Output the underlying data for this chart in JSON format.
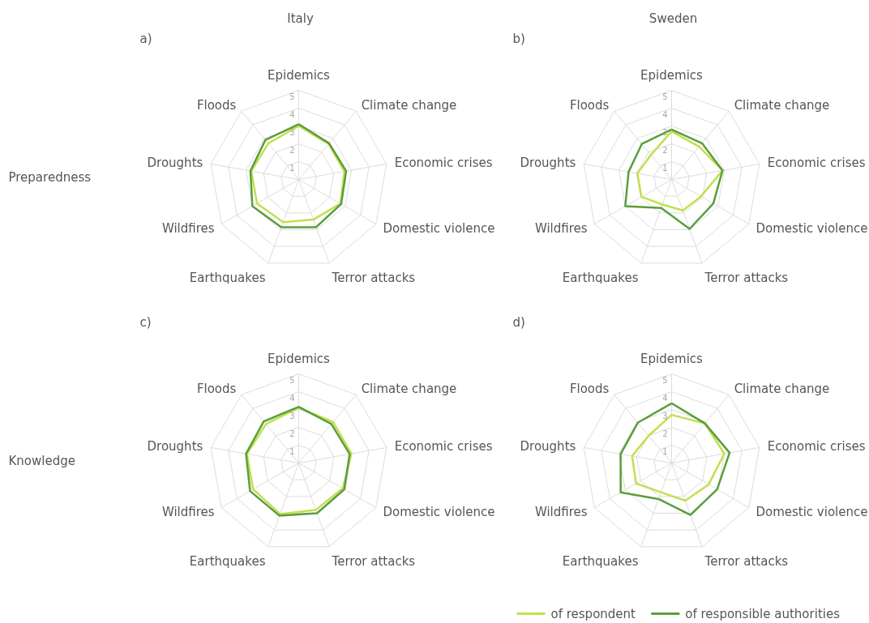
{
  "chart_data": [
    {
      "type": "radar",
      "title": "a)",
      "subtitle": "Italy",
      "ylabel": "Preparedness",
      "categories": [
        "Epidemics",
        "Climate change",
        "Economic crises",
        "Domestic violence",
        "Terror attacks",
        "Earthquakes",
        "Wildfires",
        "Droughts",
        "Floods"
      ],
      "ylim": [
        0,
        5
      ],
      "yticks": [
        1,
        2,
        3,
        4,
        5
      ],
      "grid": true,
      "legend": false,
      "series": [
        {
          "color": "#c3df4f",
          "values": [
            3.0,
            2.6,
            2.6,
            2.7,
            2.4,
            2.55,
            2.7,
            2.7,
            2.65
          ]
        },
        {
          "color": "#5a9e3c",
          "values": [
            3.1,
            2.65,
            2.7,
            2.75,
            2.85,
            2.85,
            3.0,
            2.75,
            2.9
          ]
        }
      ]
    },
    {
      "type": "radar",
      "title": "b)",
      "subtitle": "Sweden",
      "categories": [
        "Epidemics",
        "Climate change",
        "Economic crises",
        "Domestic violence",
        "Terror attacks",
        "Earthquakes",
        "Wildfires",
        "Droughts",
        "Floods"
      ],
      "ylim": [
        0,
        5
      ],
      "yticks": [
        1,
        2,
        3,
        4,
        5
      ],
      "grid": true,
      "legend": false,
      "series": [
        {
          "color": "#c3df4f",
          "values": [
            2.7,
            2.4,
            2.9,
            1.9,
            1.85,
            1.5,
            1.95,
            1.95,
            1.8
          ]
        },
        {
          "color": "#5a9e3c",
          "values": [
            2.8,
            2.65,
            2.9,
            2.7,
            2.95,
            1.7,
            3.0,
            2.45,
            2.6
          ]
        }
      ]
    },
    {
      "type": "radar",
      "title": "c)",
      "ylabel": "Knowledge",
      "categories": [
        "Epidemics",
        "Climate change",
        "Economic crises",
        "Domestic violence",
        "Terror attacks",
        "Earthquakes",
        "Wildfires",
        "Droughts",
        "Floods"
      ],
      "ylim": [
        0,
        5
      ],
      "yticks": [
        1,
        2,
        3,
        4,
        5
      ],
      "grid": true,
      "legend": false,
      "series": [
        {
          "color": "#c3df4f",
          "values": [
            3.1,
            3.0,
            3.0,
            2.85,
            2.8,
            3.05,
            2.95,
            2.95,
            2.85
          ]
        },
        {
          "color": "#5a9e3c",
          "values": [
            3.15,
            2.85,
            2.9,
            2.95,
            3.0,
            3.15,
            3.15,
            3.0,
            3.05
          ]
        }
      ]
    },
    {
      "type": "radar",
      "title": "d)",
      "categories": [
        "Epidemics",
        "Climate change",
        "Economic crises",
        "Domestic violence",
        "Terror attacks",
        "Earthquakes",
        "Wildfires",
        "Droughts",
        "Floods"
      ],
      "ylim": [
        0,
        5
      ],
      "yticks": [
        1,
        2,
        3,
        4,
        5
      ],
      "grid": true,
      "legend": "bottom",
      "series": [
        {
          "name": "of respondent",
          "color": "#c3df4f",
          "values": [
            2.7,
            2.9,
            3.0,
            2.4,
            2.25,
            1.75,
            2.3,
            2.25,
            2.0
          ]
        },
        {
          "name": "of responsible authorities",
          "color": "#5a9e3c",
          "values": [
            3.35,
            2.9,
            3.3,
            2.95,
            3.1,
            2.15,
            3.3,
            2.9,
            2.95
          ]
        }
      ]
    }
  ]
}
